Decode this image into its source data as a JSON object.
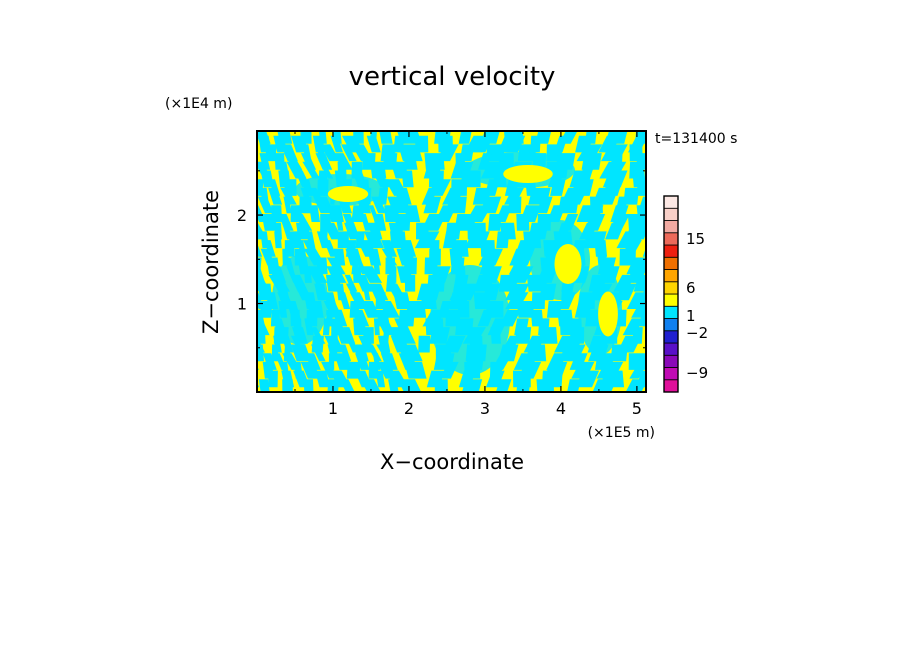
{
  "chart_data": {
    "type": "heatmap",
    "title": "vertical velocity",
    "xlabel": "X−coordinate",
    "ylabel": "Z−coordinate",
    "x_multiplier": "(×1E5 m)",
    "y_multiplier": "(×1E4 m)",
    "time_label": "t=131400 s",
    "xlim": [
      0,
      5.12
    ],
    "ylim": [
      0,
      2.95
    ],
    "x_ticks": [
      1,
      2,
      3,
      4,
      5
    ],
    "x_tick_labels": [
      "1",
      "2",
      "3",
      "4",
      "5"
    ],
    "y_ticks": [
      1,
      2
    ],
    "y_tick_labels": [
      "1",
      "2"
    ],
    "field_colors": {
      "positive": "#ffff00",
      "negative": "#00e5ff"
    },
    "colorbar": {
      "levels": [
        {
          "color": "#e0109a"
        },
        {
          "color": "#c00ab4"
        },
        {
          "color": "#8a08b8"
        },
        {
          "color": "#5a10c8"
        },
        {
          "color": "#2020d0"
        },
        {
          "color": "#1080f0"
        },
        {
          "color": "#00e5ff"
        },
        {
          "color": "#ffff00"
        },
        {
          "color": "#ffd400"
        },
        {
          "color": "#ffa500"
        },
        {
          "color": "#f07000"
        },
        {
          "color": "#ee2010"
        },
        {
          "color": "#ec6a5a"
        },
        {
          "color": "#f2aaa2"
        },
        {
          "color": "#f8d0c8"
        },
        {
          "color": "#fce8e4"
        }
      ],
      "tick_labels": [
        "15",
        "6",
        "1",
        "−2",
        "−9"
      ],
      "tick_values": [
        15,
        6,
        1,
        -2,
        -9
      ]
    }
  }
}
